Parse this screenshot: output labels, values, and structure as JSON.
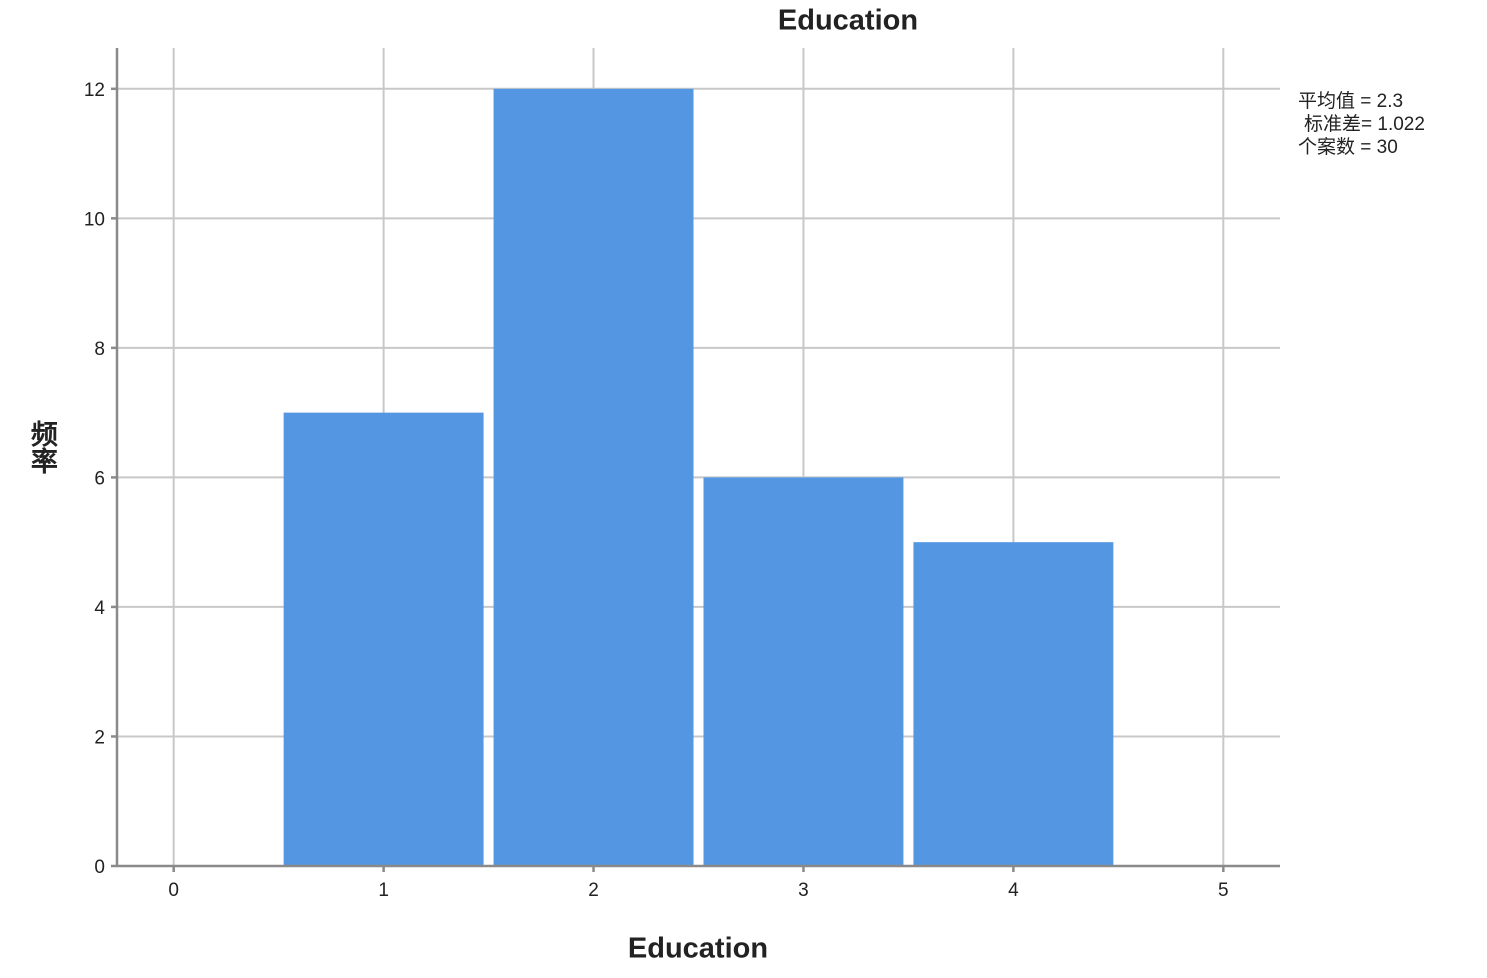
{
  "chart_data": {
    "type": "histogram",
    "title": "Education",
    "x_label": "Education",
    "y_label": "频率",
    "bins": [
      0.5,
      1.5,
      2.5,
      3.5,
      4.5
    ],
    "values": [
      7,
      12,
      6,
      5
    ],
    "color": "#5596e3",
    "xlim": [
      -0.27,
      5.27
    ],
    "xticks": [
      0,
      1,
      2,
      3,
      4,
      5
    ],
    "ylim": [
      0,
      12.63
    ],
    "yticks": [
      0,
      2,
      4,
      6,
      8,
      10,
      12
    ],
    "grid": true,
    "annotations": [
      "平均值 = 2.3",
      "标准差= 1.022",
      "个案数 = 30"
    ]
  }
}
